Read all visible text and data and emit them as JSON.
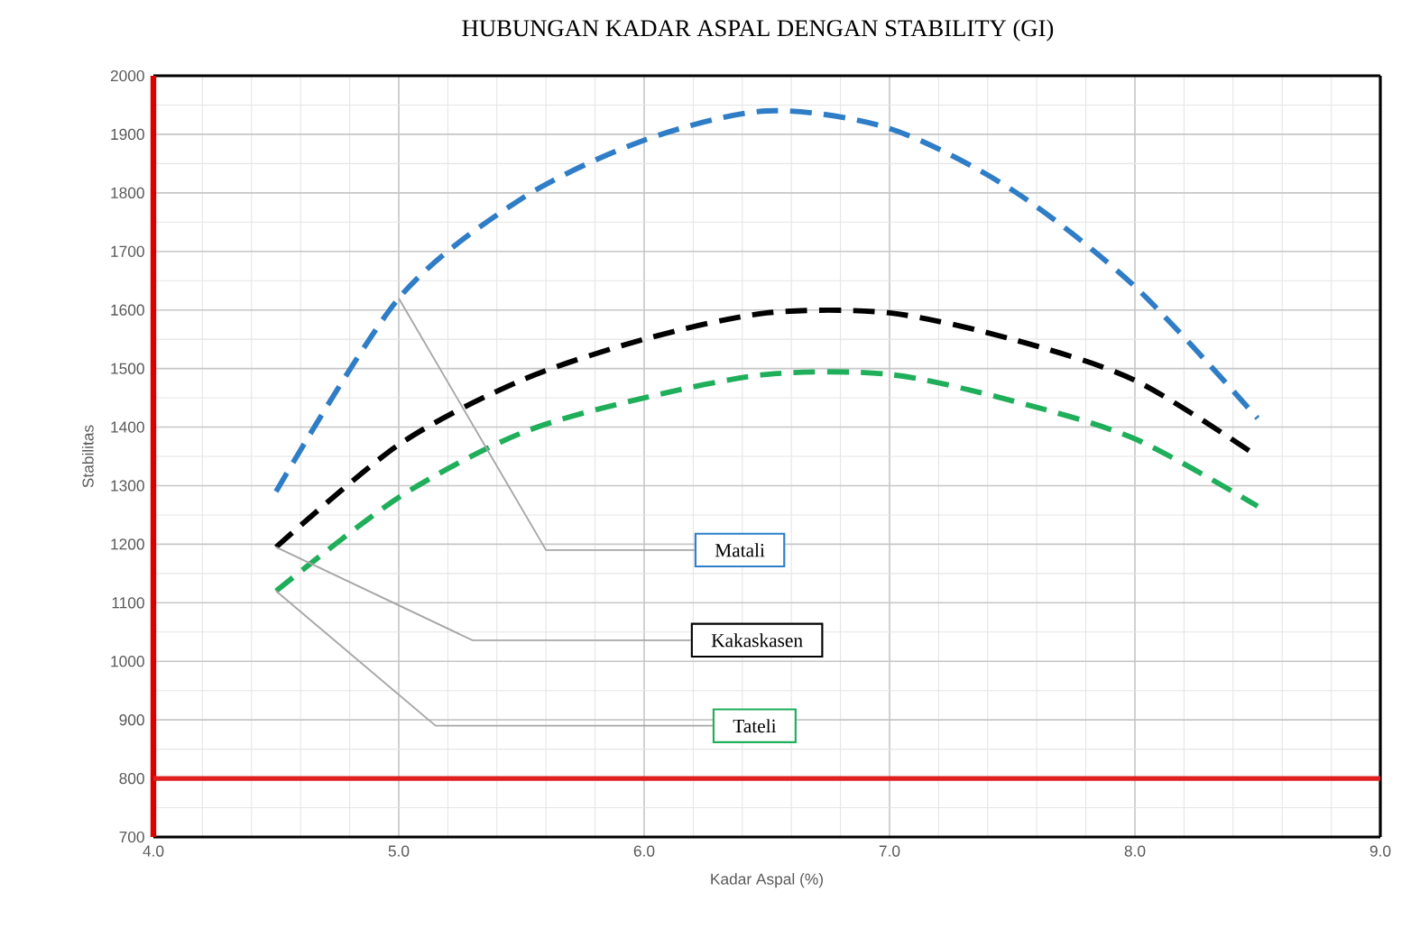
{
  "chart_data": {
    "type": "line",
    "title": "HUBUNGAN KADAR ASPAL DENGAN STABILITY  (GI)",
    "xlabel": "Kadar Aspal (%)",
    "ylabel": "Stabilitas",
    "x": [
      4.5,
      5.0,
      5.5,
      6.0,
      6.5,
      7.0,
      7.5,
      8.0,
      8.5
    ],
    "series": [
      {
        "name": "Matali",
        "color": "#2e7dc6",
        "values": [
          1290,
          1620,
          1790,
          1890,
          1940,
          1910,
          1805,
          1640,
          1415
        ]
      },
      {
        "name": "Kakaskasen",
        "color": "#000000",
        "values": [
          1195,
          1370,
          1480,
          1550,
          1595,
          1595,
          1550,
          1480,
          1350
        ]
      },
      {
        "name": "Tateli",
        "color": "#1fae5a",
        "values": [
          1120,
          1280,
          1390,
          1450,
          1490,
          1490,
          1445,
          1380,
          1265
        ]
      }
    ],
    "xlim": [
      4.0,
      9.0
    ],
    "ylim": [
      700,
      2000
    ],
    "xticks": [
      {
        "value": 4.0,
        "label": "4.0"
      },
      {
        "value": 5.0,
        "label": "5.0"
      },
      {
        "value": 6.0,
        "label": "6.0"
      },
      {
        "value": 7.0,
        "label": "7.0"
      },
      {
        "value": 8.0,
        "label": "8.0"
      },
      {
        "value": 9.0,
        "label": "9.0"
      }
    ],
    "yticks": [
      700,
      800,
      900,
      1000,
      1100,
      1200,
      1300,
      1400,
      1500,
      1600,
      1700,
      1800,
      1900,
      2000
    ],
    "ref_lines": [
      {
        "axis": "y",
        "value": 800,
        "color": "#e02020"
      }
    ],
    "grid": true,
    "line_style": "dashed",
    "marker": "none"
  }
}
